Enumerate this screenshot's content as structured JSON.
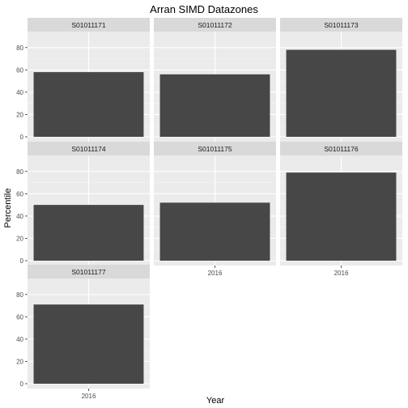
{
  "chart_data": {
    "type": "bar",
    "title": "Arran SIMD Datazones",
    "xlabel": "Year",
    "ylabel": "Percentile",
    "ylim": [
      0,
      90
    ],
    "yticks": [
      0,
      20,
      40,
      60,
      80
    ],
    "facet_layout": "wrap, 3 columns",
    "grid": true,
    "colors": {
      "panel_bg": "#ebebeb",
      "strip_bg": "#d9d9d9",
      "bar": "#474747",
      "gridline": "#ffffff"
    },
    "panels": [
      {
        "name": "S01011171",
        "categories": [
          "2016"
        ],
        "values": [
          58
        ]
      },
      {
        "name": "S01011172",
        "categories": [
          "2016"
        ],
        "values": [
          56
        ]
      },
      {
        "name": "S01011173",
        "categories": [
          "2016"
        ],
        "values": [
          78
        ]
      },
      {
        "name": "S01011174",
        "categories": [
          "2016"
        ],
        "values": [
          50
        ]
      },
      {
        "name": "S01011175",
        "categories": [
          "2016"
        ],
        "values": [
          52
        ]
      },
      {
        "name": "S01011176",
        "categories": [
          "2016"
        ],
        "values": [
          79
        ]
      },
      {
        "name": "S01011177",
        "categories": [
          "2016"
        ],
        "values": [
          71
        ]
      }
    ]
  }
}
